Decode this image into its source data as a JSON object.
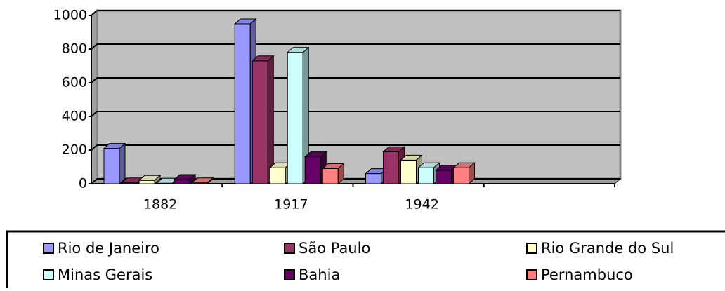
{
  "chart_data": {
    "type": "bar3d",
    "categories": [
      "1882",
      "1917",
      "1942",
      null
    ],
    "series": [
      {
        "name": "Rio de Janeiro",
        "color": "#9999ff",
        "values": [
          210,
          950,
          60,
          null
        ]
      },
      {
        "name": "São Paulo",
        "color": "#993366",
        "values": [
          5,
          730,
          190,
          null
        ]
      },
      {
        "name": "Rio Grande do Sul",
        "color": "#ffffcc",
        "values": [
          20,
          95,
          140,
          null
        ]
      },
      {
        "name": "Minas Gerais",
        "color": "#ccffff",
        "values": [
          3,
          780,
          95,
          null
        ]
      },
      {
        "name": "Bahia",
        "color": "#660066",
        "values": [
          25,
          160,
          80,
          null
        ]
      },
      {
        "name": "Pernambuco",
        "color": "#ff8080",
        "values": [
          5,
          90,
          95,
          null
        ]
      }
    ],
    "ylim": [
      0,
      1000
    ],
    "yticks": [
      0,
      200,
      400,
      600,
      800,
      1000
    ],
    "grid": true,
    "background": "#c0c0c0",
    "legend": "bottom"
  }
}
